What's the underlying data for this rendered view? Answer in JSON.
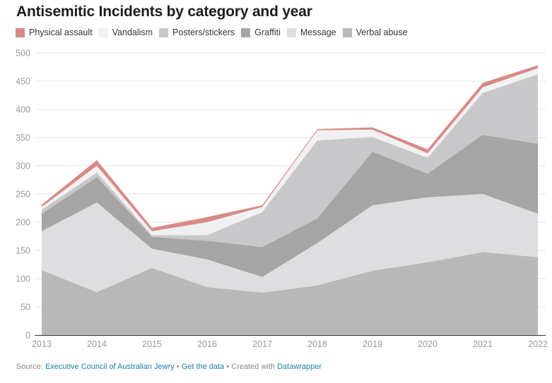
{
  "title": "Antisemitic Incidents by category and year",
  "legend": [
    {
      "label": "Physical assault",
      "color": "#d88a85"
    },
    {
      "label": "Vandalism",
      "color": "#f1f1f3"
    },
    {
      "label": "Posters/stickers",
      "color": "#c8c8ca"
    },
    {
      "label": "Graffiti",
      "color": "#a5a5a5"
    },
    {
      "label": "Message",
      "color": "#dedee0"
    },
    {
      "label": "Verbal abuse",
      "color": "#b8b8b8"
    }
  ],
  "footer": {
    "source_prefix": "Source: ",
    "source_link": "Executive Council of Australian Jewry",
    "separator1": " • ",
    "data_link": "Get the data",
    "separator2": " • Created with ",
    "tool_link": "Datawrapper"
  },
  "chart_data": {
    "type": "area",
    "stacked": true,
    "title": "Antisemitic Incidents by category and year",
    "xlabel": "",
    "ylabel": "",
    "x": [
      "2013",
      "2014",
      "2015",
      "2016",
      "2017",
      "2018",
      "2019",
      "2020",
      "2021",
      "2022"
    ],
    "ylim": [
      0,
      500
    ],
    "yticks": [
      0,
      50,
      100,
      150,
      200,
      250,
      300,
      350,
      400,
      450,
      500
    ],
    "grid": true,
    "legend_position": "top-left",
    "series": [
      {
        "name": "Verbal abuse",
        "color": "#b8b8b8",
        "values": [
          115,
          76,
          119,
          85,
          75,
          88,
          114,
          129,
          147,
          138
        ]
      },
      {
        "name": "Message",
        "color": "#dedee0",
        "values": [
          69,
          159,
          34,
          49,
          28,
          75,
          116,
          115,
          103,
          77
        ]
      },
      {
        "name": "Graffiti",
        "color": "#a5a5a5",
        "values": [
          31,
          45,
          21,
          33,
          53,
          44,
          95,
          42,
          105,
          124
        ]
      },
      {
        "name": "Posters/stickers",
        "color": "#c8c8ca",
        "values": [
          7,
          8,
          3,
          10,
          62,
          138,
          26,
          28,
          74,
          123
        ]
      },
      {
        "name": "Vandalism",
        "color": "#f1f1f3",
        "values": [
          5,
          12,
          7,
          23,
          9,
          18,
          13,
          8,
          10,
          11
        ]
      },
      {
        "name": "Physical assault",
        "color": "#d88a85",
        "values": [
          4,
          10,
          6,
          9,
          3,
          2,
          4,
          7,
          8,
          5
        ]
      }
    ]
  }
}
